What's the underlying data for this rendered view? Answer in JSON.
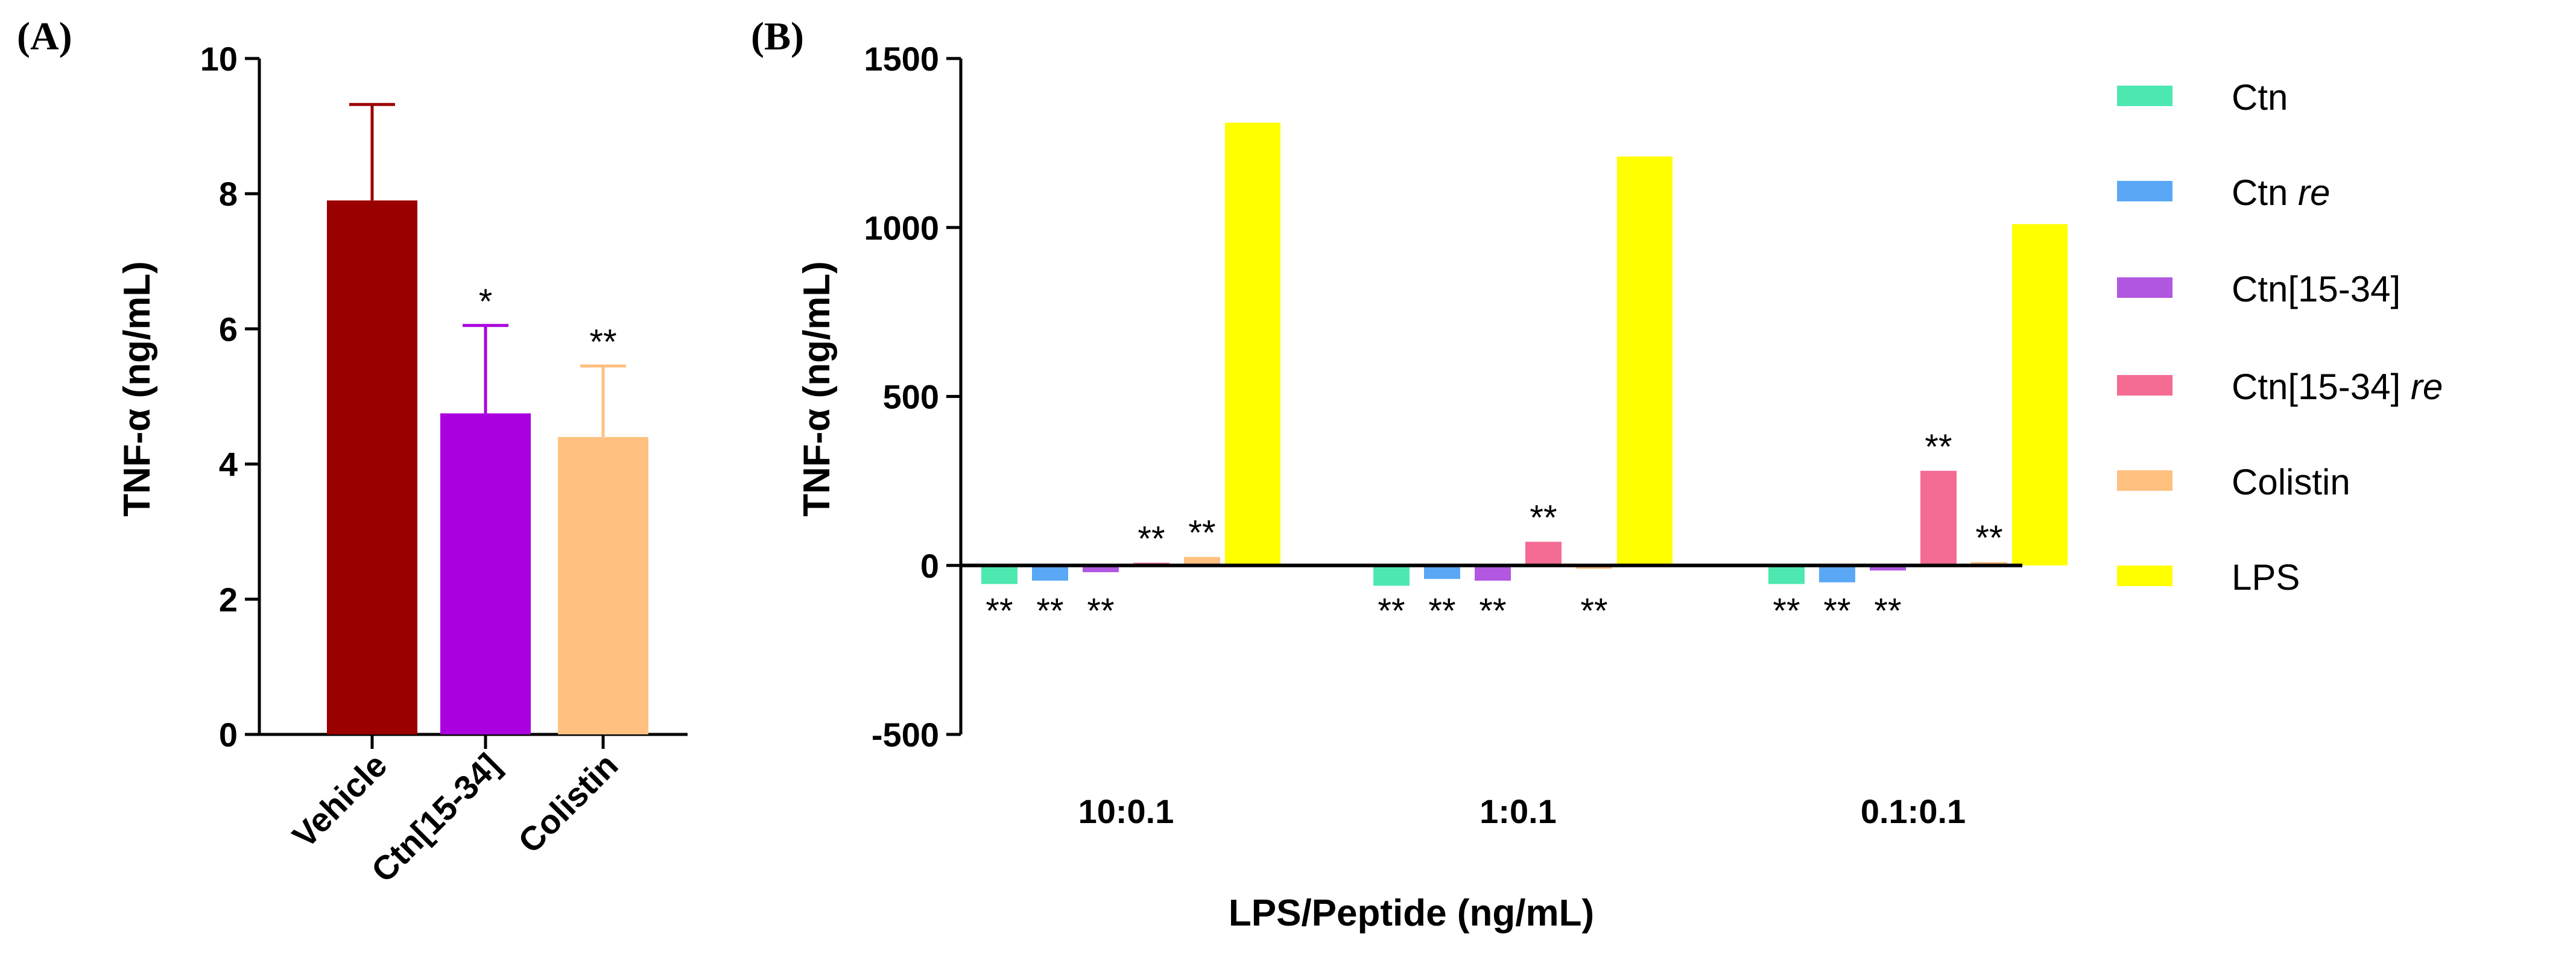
{
  "panel_labels": {
    "a": "(A)",
    "b": "(B)"
  },
  "chart_data": [
    {
      "type": "bar",
      "panel": "(A)",
      "ylabel": "TNF-α (ng/mL)",
      "xlabel": "",
      "ylim": [
        0,
        10
      ],
      "yticks": [
        "0",
        "2",
        "4",
        "6",
        "8",
        "10"
      ],
      "categories": [
        "Vehicle",
        "Ctn[15-34]",
        "Colistin"
      ],
      "values": [
        7.9,
        4.75,
        4.4
      ],
      "errors": [
        1.42,
        1.3,
        1.05
      ],
      "significance": [
        "",
        "*",
        "**"
      ],
      "colors": [
        "#9b0000",
        "#aa00dd",
        "#ffc080"
      ]
    },
    {
      "type": "bar",
      "panel": "(B)",
      "ylabel": "TNF-α (ng/mL)",
      "xlabel": "LPS/Peptide (ng/mL)",
      "ylim": [
        -500,
        1500
      ],
      "yticks": [
        "-500",
        "0",
        "500",
        "1000",
        "1500"
      ],
      "categories": [
        "10:0.1",
        "1:0.1",
        "0.1:0.1"
      ],
      "legend_position": "right",
      "series": [
        {
          "name": "Ctn",
          "name_italic": "",
          "color": "#4de8b0",
          "values": [
            -55,
            -60,
            -55
          ],
          "significance": [
            "**",
            "**",
            "**"
          ]
        },
        {
          "name": "Ctn ",
          "name_italic": "re",
          "color": "#5aa8f5",
          "values": [
            -45,
            -40,
            -50
          ],
          "significance": [
            "**",
            "**",
            "**"
          ]
        },
        {
          "name": "Ctn[15-34]",
          "name_italic": "",
          "color": "#b157e0",
          "values": [
            -20,
            -45,
            -15
          ],
          "significance": [
            "**",
            "**",
            "**"
          ]
        },
        {
          "name": "Ctn[15-34] ",
          "name_italic": "re",
          "color": "#f46b93",
          "values": [
            8,
            70,
            280
          ],
          "significance": [
            "**",
            "**",
            "**"
          ]
        },
        {
          "name": "Colistin",
          "name_italic": "",
          "color": "#ffc080",
          "values": [
            25,
            -10,
            10
          ],
          "significance": [
            "**",
            "**",
            "**"
          ]
        },
        {
          "name": "LPS",
          "name_italic": "",
          "color": "#ffff00",
          "values": [
            1310,
            1210,
            1010
          ],
          "significance": [
            "",
            "",
            ""
          ]
        }
      ]
    }
  ]
}
